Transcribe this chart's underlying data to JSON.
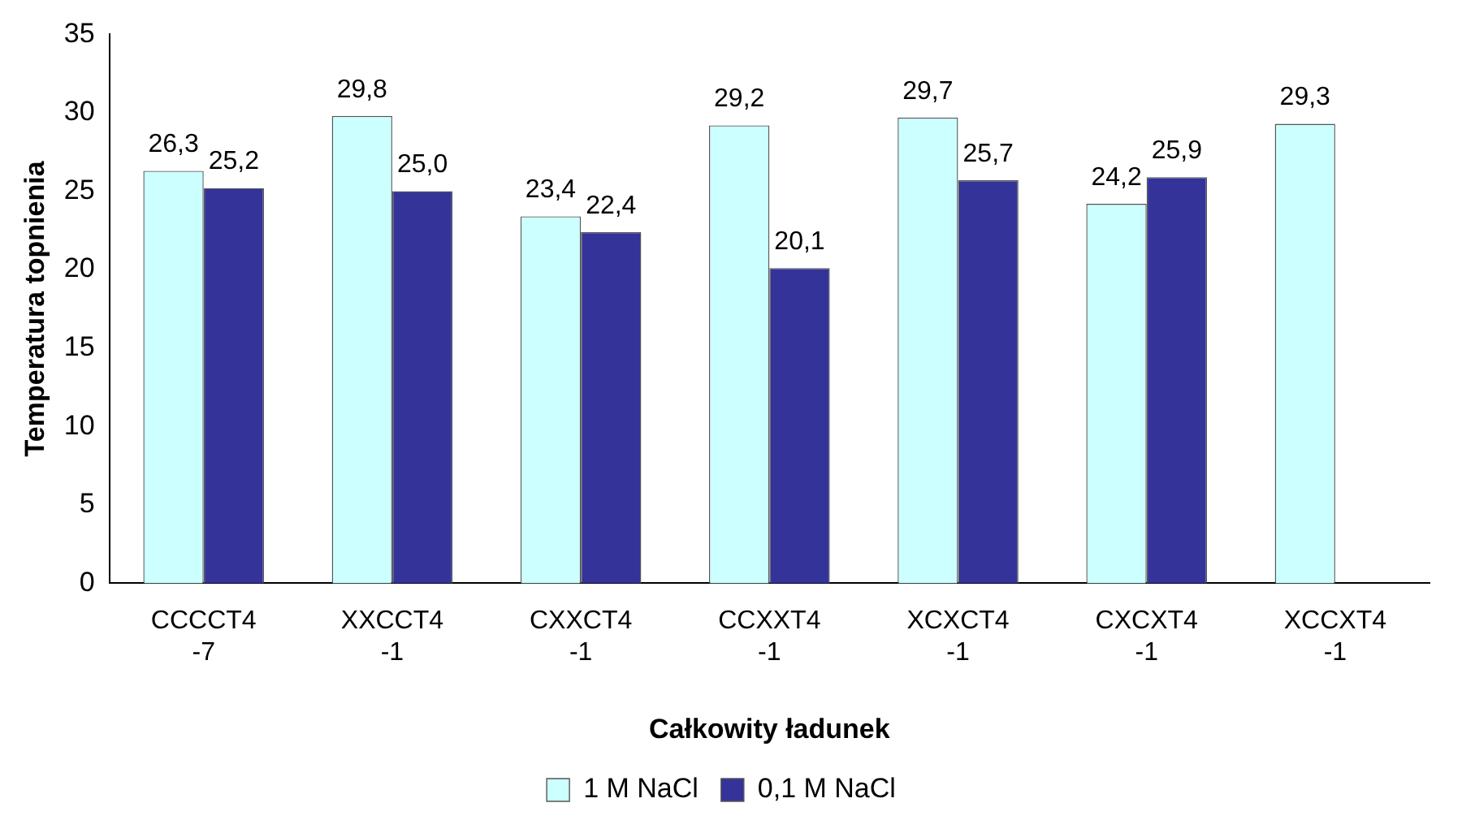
{
  "chart_data": {
    "type": "bar",
    "xlabel": "Całkowity ładunek",
    "ylabel": "Temperatura topnienia",
    "categories": [
      "CCCCT4\n-7",
      "XXCCT4\n-1",
      "CXXCT4\n-1",
      "CCXXT4\n-1",
      "XCXCT4\n-1",
      "CXCXT4\n-1",
      "XCCXT4\n-1"
    ],
    "series": [
      {
        "name": "1 M NaCl",
        "color": "#ccffff",
        "values": [
          26.3,
          29.8,
          23.4,
          29.2,
          29.7,
          24.2,
          29.3
        ],
        "value_labels": [
          "26,3",
          "29,8",
          "23,4",
          "29,2",
          "29,7",
          "24,2",
          "29,3"
        ]
      },
      {
        "name": "0,1 M NaCl",
        "color": "#333399",
        "values": [
          25.2,
          25.0,
          22.4,
          20.1,
          25.7,
          25.9,
          null
        ],
        "value_labels": [
          "25,2",
          "25,0",
          "22,4",
          "20,1",
          "25,7",
          "25,9",
          null
        ]
      }
    ],
    "ylim": [
      0,
      35
    ],
    "yticks": [
      0,
      5,
      10,
      15,
      20,
      25,
      30,
      35
    ],
    "grid": false,
    "legend": "bottom"
  }
}
